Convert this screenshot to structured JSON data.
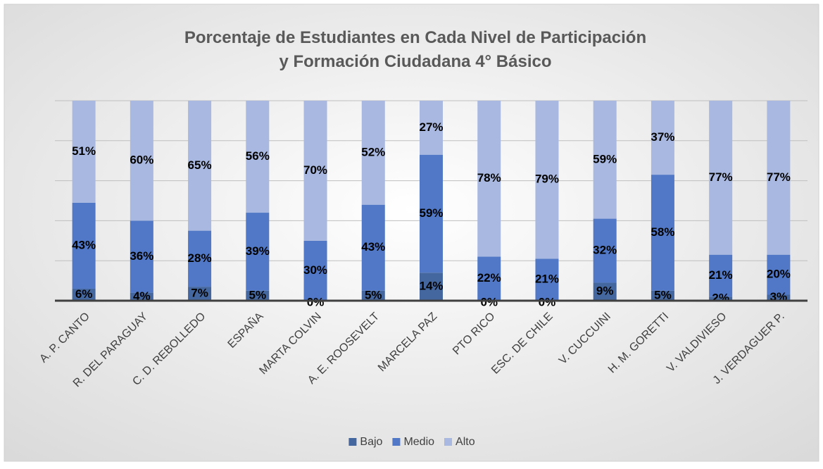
{
  "chart_data": {
    "type": "stacked_bar",
    "title": "Porcentaje de Estudiantes en Cada Nivel de Participación y Formación Ciudadana 4° Básico",
    "categories": [
      "A. P. CANTO",
      "R. DEL PARAGUAY",
      "C. D. REBOLLEDO",
      "ESPAÑA",
      "MARTA COLVIN",
      "A. E. ROOSEVELT",
      "MARCELA PAZ",
      "PTO RICO",
      "ESC. DE CHILE",
      "V. CUCCUINI",
      "H. M. GORETTI",
      "V. VALDIVIESO",
      "J. VERDAGUER P."
    ],
    "series": [
      {
        "name": "Bajo",
        "color": "#44679f",
        "values": [
          6,
          4,
          7,
          5,
          0,
          5,
          14,
          0,
          0,
          9,
          5,
          2,
          3
        ],
        "value_labels": [
          "6%",
          "4%",
          "7%",
          "5%",
          "0%",
          "5%",
          "14%",
          "0%",
          "0%",
          "9%",
          "5%",
          "2%",
          "3%"
        ]
      },
      {
        "name": "Medio",
        "color": "#5078c6",
        "values": [
          43,
          36,
          28,
          39,
          30,
          43,
          59,
          22,
          21,
          32,
          58,
          21,
          20
        ],
        "value_labels": [
          "43%",
          "36%",
          "28%",
          "39%",
          "30%",
          "43%",
          "59%",
          "22%",
          "21%",
          "32%",
          "58%",
          "21%",
          "20%"
        ]
      },
      {
        "name": "Alto",
        "color": "#a9b8e0",
        "values": [
          51,
          60,
          65,
          56,
          70,
          52,
          27,
          78,
          79,
          59,
          37,
          77,
          77
        ],
        "value_labels": [
          "51%",
          "60%",
          "65%",
          "56%",
          "70%",
          "52%",
          "27%",
          "78%",
          "79%",
          "59%",
          "37%",
          "77%",
          "77%"
        ]
      }
    ],
    "ylim": [
      0,
      100
    ],
    "yticks": [
      0,
      20,
      40,
      60,
      80,
      100
    ],
    "grid": true,
    "legend": "bottom"
  }
}
